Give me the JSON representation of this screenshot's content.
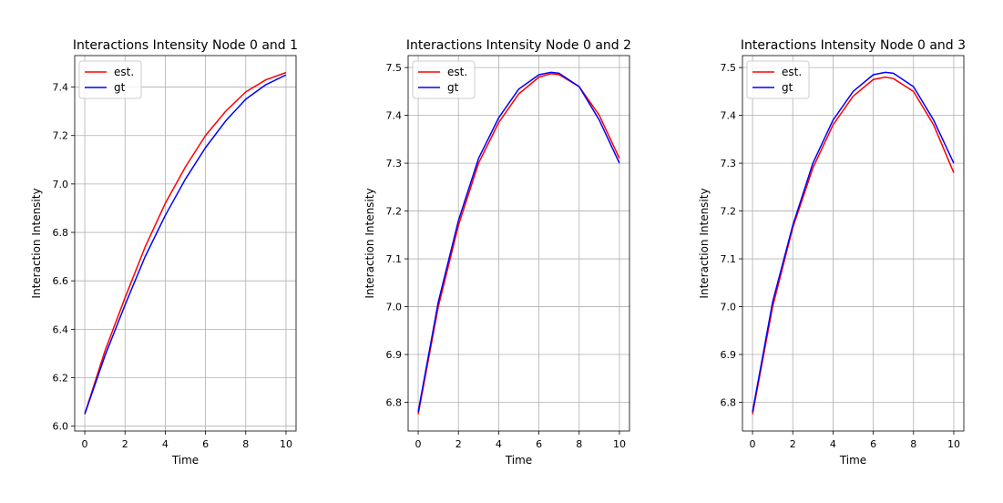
{
  "chart_data": [
    {
      "type": "line",
      "title": "Interactions Intensity Node 0 and 1",
      "xlabel": "Time",
      "ylabel": "Interaction Intensity",
      "xlim": [
        -0.5,
        10.5
      ],
      "ylim": [
        5.98,
        7.53
      ],
      "xticks": [
        0,
        2,
        4,
        6,
        8,
        10
      ],
      "yticks": [
        6.0,
        6.2,
        6.4,
        6.6,
        6.8,
        7.0,
        7.2,
        7.4
      ],
      "ytick_labels": [
        "6.0",
        "6.2",
        "6.4",
        "6.6",
        "6.8",
        "7.0",
        "7.2",
        "7.4"
      ],
      "grid": true,
      "legend": "upper-left",
      "x": [
        0,
        1,
        2,
        3,
        4,
        5,
        6,
        7,
        8,
        9,
        10
      ],
      "series": [
        {
          "name": "est.",
          "color": "#ff0000",
          "values": [
            6.05,
            6.31,
            6.53,
            6.74,
            6.92,
            7.07,
            7.2,
            7.3,
            7.38,
            7.43,
            7.46
          ]
        },
        {
          "name": "gt",
          "color": "#0000ff",
          "values": [
            6.05,
            6.29,
            6.5,
            6.7,
            6.87,
            7.02,
            7.15,
            7.26,
            7.35,
            7.41,
            7.45
          ]
        }
      ]
    },
    {
      "type": "line",
      "title": "Interactions Intensity Node 0 and 2",
      "xlabel": "Time",
      "ylabel": "Interaction Intensity",
      "xlim": [
        -0.5,
        10.5
      ],
      "ylim": [
        6.74,
        7.525
      ],
      "xticks": [
        0,
        2,
        4,
        6,
        8,
        10
      ],
      "yticks": [
        6.8,
        6.9,
        7.0,
        7.1,
        7.2,
        7.3,
        7.4,
        7.5
      ],
      "ytick_labels": [
        "6.8",
        "6.9",
        "7.0",
        "7.1",
        "7.2",
        "7.3",
        "7.4",
        "7.5"
      ],
      "grid": true,
      "legend": "upper-left",
      "x": [
        0,
        1,
        2,
        3,
        4,
        5,
        6,
        6.6,
        7,
        8,
        9,
        10
      ],
      "series": [
        {
          "name": "est.",
          "color": "#ff0000",
          "values": [
            6.775,
            7.0,
            7.17,
            7.3,
            7.385,
            7.445,
            7.48,
            7.487,
            7.485,
            7.46,
            7.4,
            7.31
          ]
        },
        {
          "name": "gt",
          "color": "#0000ff",
          "values": [
            6.78,
            7.01,
            7.18,
            7.31,
            7.395,
            7.455,
            7.485,
            7.49,
            7.488,
            7.46,
            7.39,
            7.3
          ]
        }
      ]
    },
    {
      "type": "line",
      "title": "Interactions Intensity Node 0 and 3",
      "xlabel": "Time",
      "ylabel": "Interaction Intensity",
      "xlim": [
        -0.5,
        10.5
      ],
      "ylim": [
        6.74,
        7.525
      ],
      "xticks": [
        0,
        2,
        4,
        6,
        8,
        10
      ],
      "yticks": [
        6.8,
        6.9,
        7.0,
        7.1,
        7.2,
        7.3,
        7.4,
        7.5
      ],
      "ytick_labels": [
        "6.8",
        "6.9",
        "7.0",
        "7.1",
        "7.2",
        "7.3",
        "7.4",
        "7.5"
      ],
      "grid": true,
      "legend": "upper-left",
      "x": [
        0,
        1,
        2,
        3,
        4,
        5,
        6,
        6.6,
        7,
        8,
        9,
        10
      ],
      "series": [
        {
          "name": "est.",
          "color": "#ff0000",
          "values": [
            6.775,
            7.0,
            7.165,
            7.29,
            7.38,
            7.44,
            7.475,
            7.48,
            7.477,
            7.45,
            7.38,
            7.28
          ]
        },
        {
          "name": "gt",
          "color": "#0000ff",
          "values": [
            6.78,
            7.01,
            7.17,
            7.3,
            7.39,
            7.45,
            7.485,
            7.49,
            7.488,
            7.46,
            7.39,
            7.3
          ]
        }
      ]
    }
  ]
}
